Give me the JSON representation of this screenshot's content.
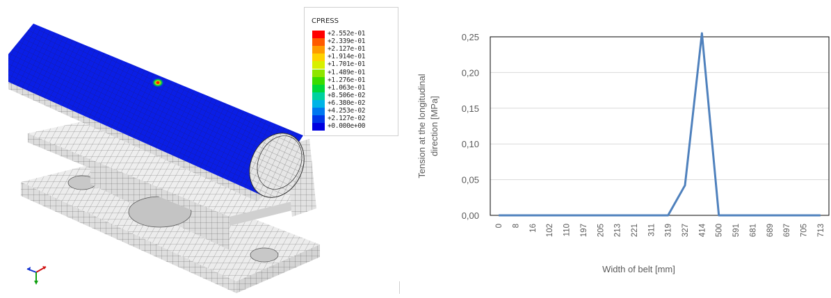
{
  "fea_model": {
    "legend": {
      "title": "CPRESS",
      "entries": [
        {
          "label": "+2.552e-01",
          "color": "#ff0000"
        },
        {
          "label": "+2.339e-01",
          "color": "#ff5a00"
        },
        {
          "label": "+2.127e-01",
          "color": "#ff9b00"
        },
        {
          "label": "+1.914e-01",
          "color": "#ffd200"
        },
        {
          "label": "+1.701e-01",
          "color": "#d8f000"
        },
        {
          "label": "+1.489e-01",
          "color": "#8ee500"
        },
        {
          "label": "+1.276e-01",
          "color": "#3bdc00"
        },
        {
          "label": "+1.063e-01",
          "color": "#00d83a"
        },
        {
          "label": "+8.506e-02",
          "color": "#00d2a0"
        },
        {
          "label": "+6.380e-02",
          "color": "#00b4e6"
        },
        {
          "label": "+4.253e-02",
          "color": "#0078f0"
        },
        {
          "label": "+2.127e-02",
          "color": "#0036e8"
        },
        {
          "label": "+0.000e+00",
          "color": "#0000e0"
        }
      ]
    },
    "colors": {
      "pipe_surface": "#0a1ee6",
      "mesh_gray": "#e8e8e8",
      "mesh_line": "#555555"
    },
    "triad_icon": "coordinate-triad-icon"
  },
  "chart_data": {
    "type": "line",
    "ylabel_lines": [
      "Tension at the longitudinal",
      "direction [MPa]"
    ],
    "xlabel": "Width of belt [mm]",
    "categories": [
      "0",
      "8",
      "16",
      "102",
      "110",
      "197",
      "205",
      "213",
      "221",
      "311",
      "319",
      "327",
      "414",
      "500",
      "591",
      "681",
      "689",
      "697",
      "705",
      "713"
    ],
    "series": [
      {
        "values": [
          0,
          0,
          0,
          0,
          0,
          0,
          0,
          0,
          0,
          0,
          0,
          0.042,
          0.255,
          0,
          0,
          0,
          0,
          0,
          0,
          0
        ],
        "color": "#4f81bd"
      }
    ],
    "yticks": [
      "0,00",
      "0,05",
      "0,10",
      "0,15",
      "0,20",
      "0,25"
    ],
    "ylim": [
      0,
      0.25
    ],
    "grid": true
  }
}
